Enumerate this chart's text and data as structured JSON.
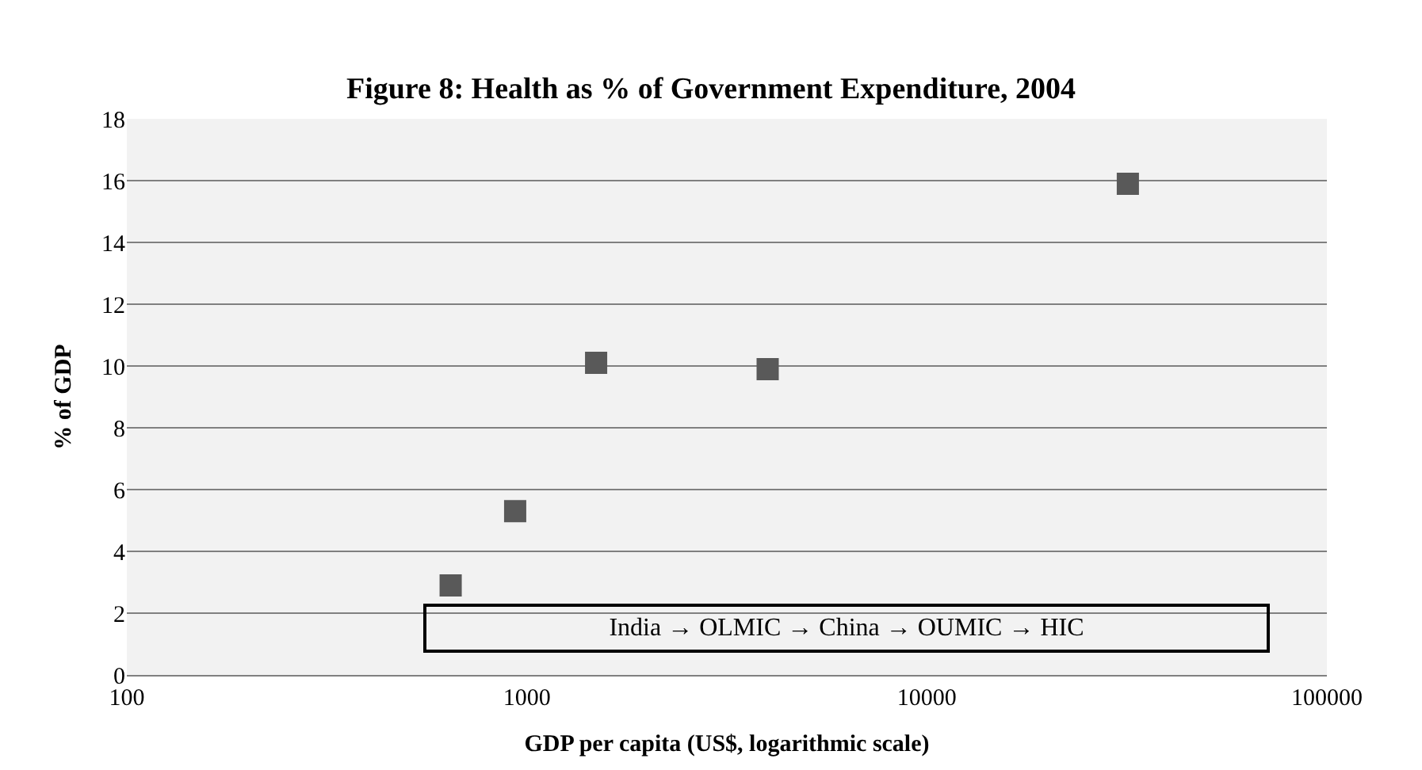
{
  "chart_data": {
    "type": "scatter",
    "title": "Figure 8: Health as % of Government Expenditure, 2004",
    "xlabel": "GDP per capita (US$, logarithmic scale)",
    "ylabel": "% of GDP",
    "x": [
      645,
      935,
      1490,
      4000,
      31800
    ],
    "series": [
      {
        "color": "#595959",
        "values": [
          2.9,
          5.3,
          10.1,
          9.9,
          15.9
        ]
      }
    ],
    "log": "x",
    "xlim": [
      100,
      100000
    ],
    "xticks": [
      100,
      1000,
      10000,
      100000
    ],
    "ylim": [
      0,
      18
    ],
    "yticks": [
      0,
      2,
      4,
      6,
      8,
      10,
      12,
      14,
      16,
      18
    ],
    "grid": "y",
    "marker": "square",
    "annotations": [
      "India → OLMIC → China → OUMIC → HIC"
    ]
  }
}
